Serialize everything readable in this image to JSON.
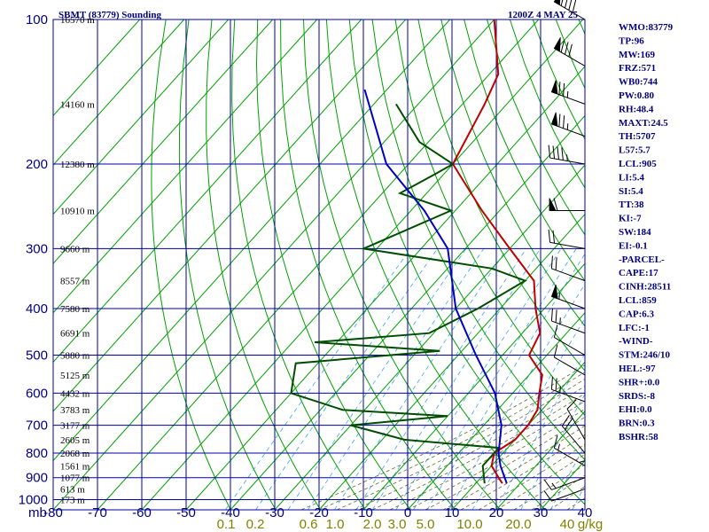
{
  "header": {
    "station": "SBMT (83779) Sounding",
    "time": "1200Z  4 MAY 25"
  },
  "indices": [
    "WMO:83779",
    "TP:96",
    "MW:169",
    "FRZ:571",
    "WB0:744",
    "PW:0.80",
    "RH:48.4",
    "MAXT:24.5",
    "TH:5707",
    "L57:5.7",
    "LCL:905",
    "LI:5.4",
    "SI:5.4",
    "TT:38",
    "KI:-7",
    "SW:184",
    "EI:-0.1",
    "-PARCEL-",
    "CAPE:17",
    "CINH:28511",
    "LCL:859",
    "CAP:6.3",
    "LFC:-1",
    "-WIND-",
    "STM:246/10",
    "HEL:-97",
    "SHR+:0.0",
    "SRDS:-8",
    "EHI:0.0",
    "BRN:0.3",
    "BSHR:58"
  ],
  "colors": {
    "grid": "#0000a0",
    "isotherm": "#00a000",
    "dry_adiabat": "#00a000",
    "moist_adiabat": "#6a6a30",
    "mixing_ratio": "#3fa0ff",
    "temperature": "#c00000",
    "dewpoint": "#004d00",
    "parcel": "#0000c0",
    "wind": "#000000"
  },
  "chart_data": {
    "type": "skew-t",
    "xlabel_units": "mb",
    "pressure_ticks": [
      "100",
      "200",
      "300",
      "400",
      "500",
      "600",
      "700",
      "800",
      "900",
      "1000"
    ],
    "pressure_levels": [
      100,
      200,
      300,
      400,
      500,
      600,
      700,
      800,
      900,
      1000
    ],
    "temperature_ticks": [
      "-80",
      "-70",
      "-60",
      "-50",
      "-40",
      "-30",
      "-20",
      "-10",
      "0",
      "10",
      "20",
      "30",
      "40"
    ],
    "mixing_ratio_ticks": [
      "0.1",
      "0.2",
      "0.6",
      "1.0",
      "2.0",
      "3.0",
      "5.0",
      "10.0",
      "20.0",
      "40"
    ],
    "mixing_ratio_unit": "g/kg",
    "heights": [
      "16570 m",
      "14160 m",
      "12380 m",
      "10910 m",
      "9660 m",
      "8557 m",
      "7580 m",
      "6691 m",
      "5880 m",
      "5125 m",
      "4432 m",
      "3783 m",
      "3177 m",
      "2605 m",
      "2068 m",
      "1561 m",
      "1077 m",
      "613 m",
      "173 m"
    ],
    "height_pressures": [
      100,
      150,
      200,
      250,
      300,
      350,
      400,
      450,
      500,
      550,
      600,
      650,
      700,
      750,
      800,
      850,
      900,
      950,
      1000
    ],
    "series": [
      {
        "key": "temperature",
        "points": [
          [
            100,
            -80
          ],
          [
            130,
            -68
          ],
          [
            150,
            -65
          ],
          [
            200,
            -60
          ],
          [
            250,
            -44
          ],
          [
            300,
            -30
          ],
          [
            350,
            -18
          ],
          [
            400,
            -12
          ],
          [
            450,
            -6
          ],
          [
            500,
            -4
          ],
          [
            550,
            3
          ],
          [
            600,
            6
          ],
          [
            650,
            9
          ],
          [
            700,
            10
          ],
          [
            750,
            10
          ],
          [
            800,
            8
          ],
          [
            850,
            10
          ],
          [
            900,
            14
          ],
          [
            925,
            16
          ]
        ]
      },
      {
        "key": "dewpoint",
        "points": [
          [
            150,
            -85
          ],
          [
            180,
            -72
          ],
          [
            200,
            -60
          ],
          [
            210,
            -62
          ],
          [
            230,
            -66
          ],
          [
            250,
            -51
          ],
          [
            300,
            -63
          ],
          [
            330,
            -30
          ],
          [
            350,
            -20
          ],
          [
            400,
            -25
          ],
          [
            450,
            -31
          ],
          [
            470,
            -55
          ],
          [
            490,
            -25
          ],
          [
            520,
            -55
          ],
          [
            600,
            -50
          ],
          [
            650,
            -35
          ],
          [
            670,
            -10
          ],
          [
            700,
            -30
          ],
          [
            750,
            -15
          ],
          [
            780,
            8
          ],
          [
            850,
            8
          ],
          [
            925,
            12
          ]
        ]
      },
      {
        "key": "parcel",
        "points": [
          [
            140,
            -95
          ],
          [
            200,
            -75
          ],
          [
            250,
            -57
          ],
          [
            300,
            -44
          ],
          [
            400,
            -30
          ],
          [
            500,
            -16
          ],
          [
            600,
            -4
          ],
          [
            700,
            4
          ],
          [
            800,
            9
          ],
          [
            850,
            12
          ],
          [
            925,
            17
          ]
        ]
      }
    ],
    "wind_barbs": [
      {
        "p": 100,
        "dir": 300,
        "spd": 90
      },
      {
        "p": 125,
        "dir": 300,
        "spd": 80
      },
      {
        "p": 150,
        "dir": 290,
        "spd": 75
      },
      {
        "p": 175,
        "dir": 290,
        "spd": 75
      },
      {
        "p": 200,
        "dir": 280,
        "spd": 45
      },
      {
        "p": 250,
        "dir": 270,
        "spd": 60
      },
      {
        "p": 300,
        "dir": 280,
        "spd": 20
      },
      {
        "p": 350,
        "dir": 290,
        "spd": 20
      },
      {
        "p": 400,
        "dir": 290,
        "spd": 55
      },
      {
        "p": 450,
        "dir": 290,
        "spd": 25
      },
      {
        "p": 500,
        "dir": 300,
        "spd": 10
      },
      {
        "p": 550,
        "dir": 300,
        "spd": 10
      },
      {
        "p": 625,
        "dir": 290,
        "spd": 25
      },
      {
        "p": 700,
        "dir": 180,
        "spd": 5
      },
      {
        "p": 750,
        "dir": 330,
        "spd": 10
      },
      {
        "p": 800,
        "dir": 320,
        "spd": 20
      },
      {
        "p": 850,
        "dir": 300,
        "spd": 15
      },
      {
        "p": 900,
        "dir": 250,
        "spd": 15
      },
      {
        "p": 950,
        "dir": 250,
        "spd": 10
      }
    ]
  }
}
